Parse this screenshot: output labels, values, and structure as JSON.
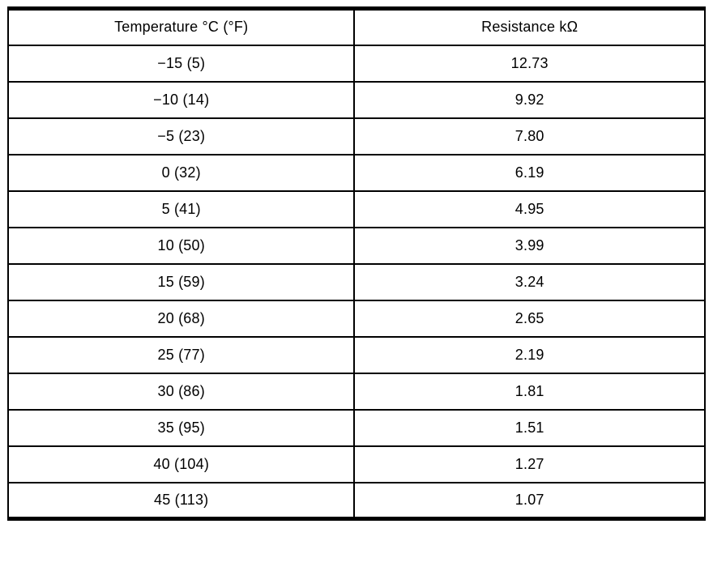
{
  "table": {
    "headers": [
      "Temperature °C (°F)",
      "Resistance kΩ"
    ],
    "rows": [
      [
        "−15 (5)",
        "12.73"
      ],
      [
        "−10 (14)",
        "9.92"
      ],
      [
        "−5 (23)",
        "7.80"
      ],
      [
        "0 (32)",
        "6.19"
      ],
      [
        "5 (41)",
        "4.95"
      ],
      [
        "10 (50)",
        "3.99"
      ],
      [
        "15 (59)",
        "3.24"
      ],
      [
        "20 (68)",
        "2.65"
      ],
      [
        "25 (77)",
        "2.19"
      ],
      [
        "30 (86)",
        "1.81"
      ],
      [
        "35 (95)",
        "1.51"
      ],
      [
        "40 (104)",
        "1.27"
      ],
      [
        "45 (113)",
        "1.07"
      ]
    ]
  },
  "chart_data": {
    "type": "table",
    "title": "",
    "columns": [
      "Temperature °C (°F)",
      "Resistance kΩ"
    ],
    "temperature_c": [
      -15,
      -10,
      -5,
      0,
      5,
      10,
      15,
      20,
      25,
      30,
      35,
      40,
      45
    ],
    "temperature_f": [
      5,
      14,
      23,
      32,
      41,
      50,
      59,
      68,
      77,
      86,
      95,
      104,
      113
    ],
    "resistance_kohm": [
      12.73,
      9.92,
      7.8,
      6.19,
      4.95,
      3.99,
      3.24,
      2.65,
      2.19,
      1.81,
      1.51,
      1.27,
      1.07
    ]
  },
  "colors": {
    "border": "#000000",
    "background": "#ffffff",
    "text": "#000000"
  }
}
